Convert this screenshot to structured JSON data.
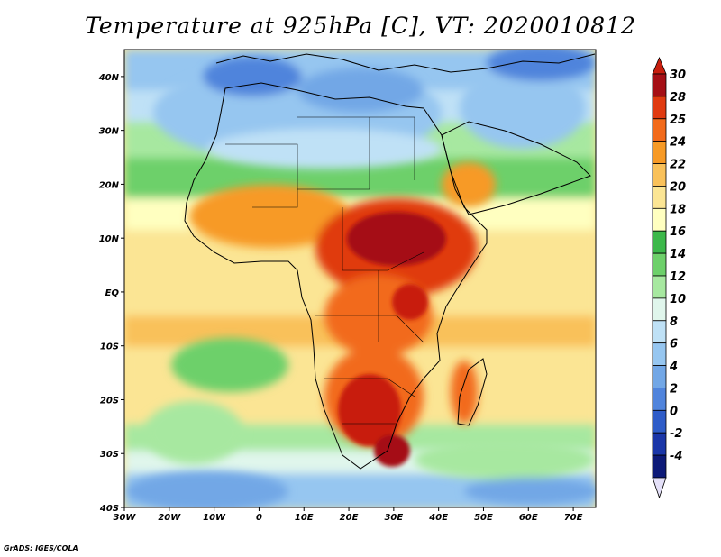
{
  "title": "Temperature at 925hPa [C], VT: 2020010812",
  "credit": "GrADS: IGES/COLA",
  "map": {
    "lon_range": [
      -30,
      75
    ],
    "lat_range": [
      -40,
      45
    ],
    "lon_ticks": [
      {
        "v": -30,
        "label": "30W"
      },
      {
        "v": -20,
        "label": "20W"
      },
      {
        "v": -10,
        "label": "10W"
      },
      {
        "v": 0,
        "label": "0"
      },
      {
        "v": 10,
        "label": "10E"
      },
      {
        "v": 20,
        "label": "20E"
      },
      {
        "v": 30,
        "label": "30E"
      },
      {
        "v": 40,
        "label": "40E"
      },
      {
        "v": 50,
        "label": "50E"
      },
      {
        "v": 60,
        "label": "60E"
      },
      {
        "v": 70,
        "label": "70E"
      }
    ],
    "lat_ticks": [
      {
        "v": 40,
        "label": "40N"
      },
      {
        "v": 30,
        "label": "30N"
      },
      {
        "v": 20,
        "label": "20N"
      },
      {
        "v": 10,
        "label": "10N"
      },
      {
        "v": 0,
        "label": "EQ"
      },
      {
        "v": -10,
        "label": "10S"
      },
      {
        "v": -20,
        "label": "20S"
      },
      {
        "v": -30,
        "label": "30S"
      },
      {
        "v": -40,
        "label": "40S"
      }
    ]
  },
  "colorbar": {
    "levels": [
      "30",
      "28",
      "25",
      "24",
      "22",
      "20",
      "18",
      "16",
      "14",
      "12",
      "10",
      "8",
      "6",
      "4",
      "2",
      "0",
      "-2",
      "-4"
    ],
    "colors": [
      "#a50f15",
      "#e03a10",
      "#f26a1a",
      "#f79a26",
      "#f9c15a",
      "#fbe594",
      "#ffffc0",
      "#3cb84a",
      "#6dd06a",
      "#a7e8a0",
      "#e0f6ec",
      "#bfe1f6",
      "#96c6f0",
      "#72a7e6",
      "#5084dc",
      "#2e5cc8",
      "#1a36a8",
      "#0d1a78",
      "#e4e0f8"
    ],
    "top_color": "#c81e0e",
    "bottom_color": "#e4e0f8"
  }
}
